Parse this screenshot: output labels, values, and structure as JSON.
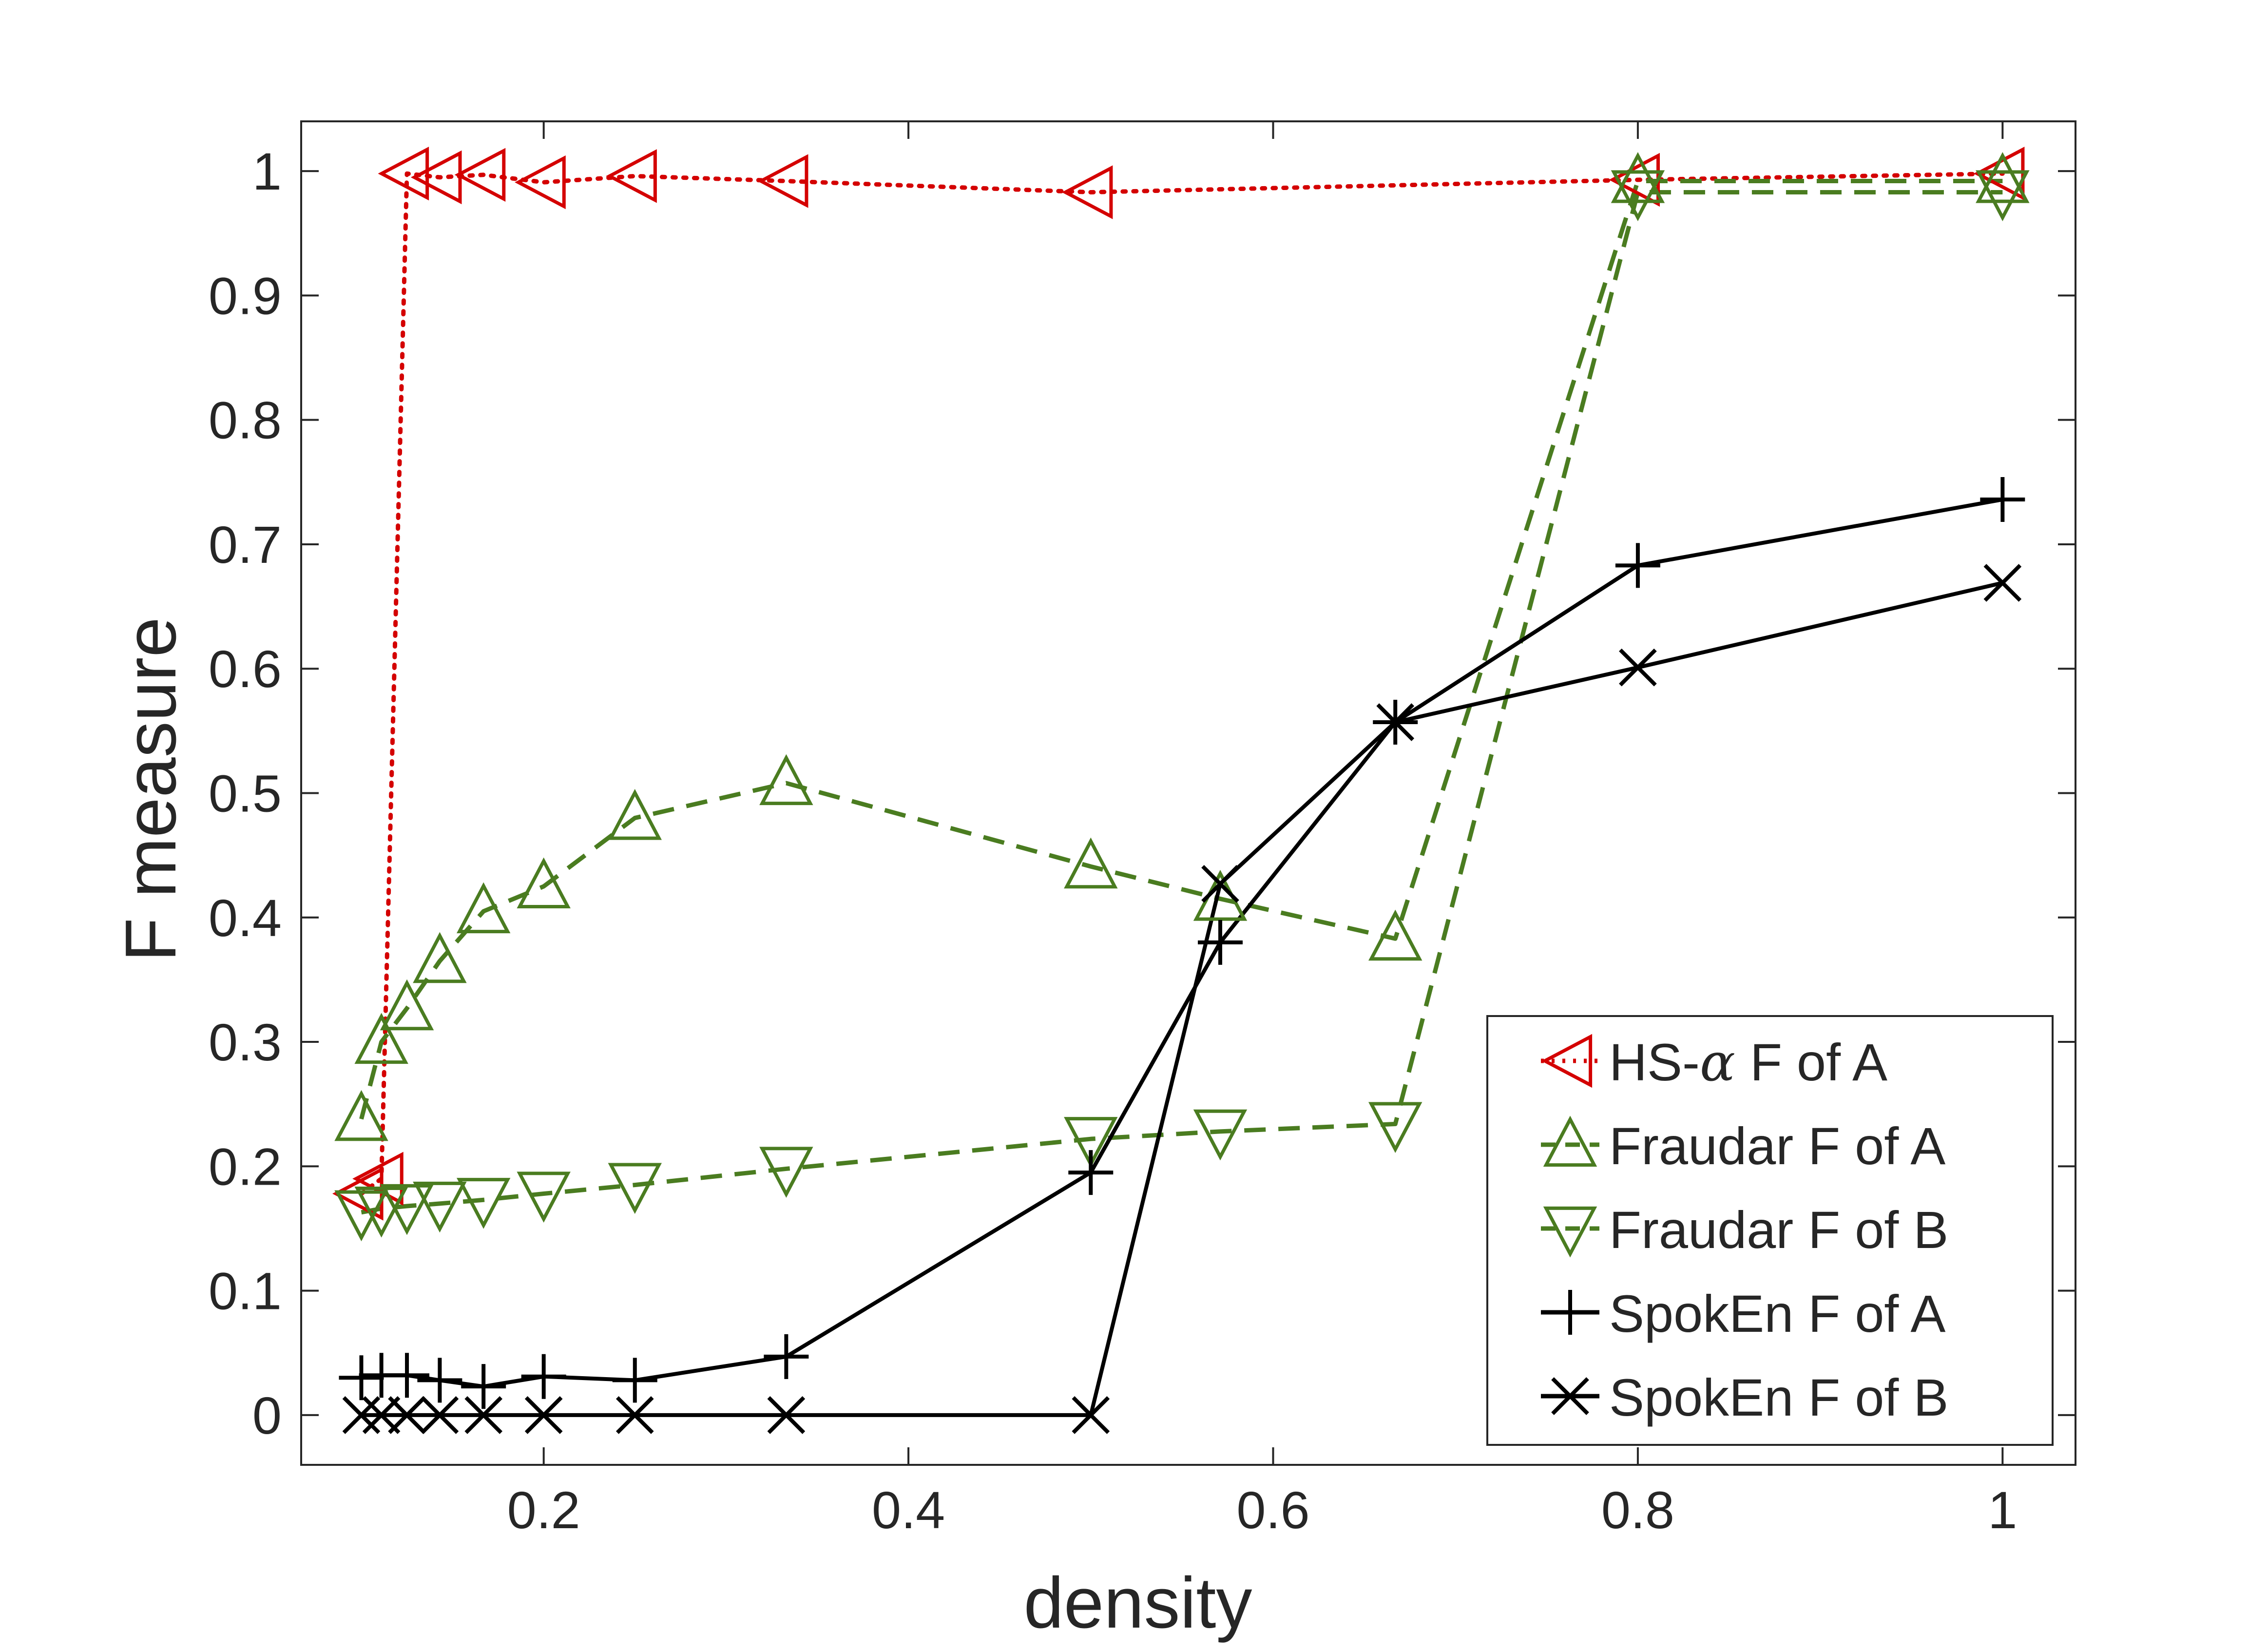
{
  "chart_data": {
    "type": "line",
    "title": "",
    "xlabel": "density",
    "ylabel": "F measure",
    "xlim": [
      0.067,
      1.04
    ],
    "ylim": [
      -0.04,
      1.04
    ],
    "xticks": [
      0.2,
      0.4,
      0.6,
      0.8,
      1
    ],
    "xtick_labels": [
      "0.2",
      "0.4",
      "0.6",
      "0.8",
      "1"
    ],
    "yticks": [
      0,
      0.1,
      0.2,
      0.3,
      0.4,
      0.5,
      0.6,
      0.7,
      0.8,
      0.9,
      1
    ],
    "ytick_labels": [
      "0",
      "0.1",
      "0.2",
      "0.3",
      "0.4",
      "0.5",
      "0.6",
      "0.7",
      "0.8",
      "0.9",
      "1"
    ],
    "grid": false,
    "legend_position": "bottom-right",
    "series": [
      {
        "name": "HS-α F of A",
        "legend_prefix": "HS-",
        "legend_symbol": "α",
        "legend_suffix": " F of A",
        "color": "#d40000",
        "line_style": "dotted",
        "marker": "triangle-left",
        "x": [
          0.1,
          0.111,
          0.125,
          0.143,
          0.167,
          0.2,
          0.25,
          0.333,
          0.5,
          0.8,
          1
        ],
        "y": [
          0.178,
          0.19,
          0.998,
          0.995,
          0.997,
          0.991,
          0.996,
          0.992,
          0.983,
          0.993,
          0.998
        ]
      },
      {
        "name": "Fraudar F of A",
        "color": "#4a7c20",
        "line_style": "dashed",
        "marker": "triangle-up",
        "x": [
          0.1,
          0.111,
          0.125,
          0.143,
          0.167,
          0.2,
          0.25,
          0.333,
          0.5,
          0.571,
          0.667,
          0.8,
          1
        ],
        "y": [
          0.238,
          0.3,
          0.327,
          0.365,
          0.405,
          0.425,
          0.48,
          0.508,
          0.441,
          0.415,
          0.383,
          0.992,
          0.992
        ]
      },
      {
        "name": "Fraudar F of B",
        "color": "#4a7c20",
        "line_style": "dashed",
        "marker": "triangle-down",
        "x": [
          0.1,
          0.111,
          0.125,
          0.143,
          0.167,
          0.2,
          0.25,
          0.333,
          0.5,
          0.571,
          0.667,
          0.8,
          1
        ],
        "y": [
          0.163,
          0.166,
          0.168,
          0.17,
          0.173,
          0.178,
          0.185,
          0.198,
          0.222,
          0.228,
          0.234,
          0.983,
          0.983
        ]
      },
      {
        "name": "SpokEn F of A",
        "color": "#000000",
        "line_style": "solid",
        "marker": "plus",
        "x": [
          0.1,
          0.111,
          0.125,
          0.143,
          0.167,
          0.2,
          0.25,
          0.333,
          0.5,
          0.571,
          0.667,
          0.8,
          1
        ],
        "y": [
          0.03,
          0.032,
          0.032,
          0.028,
          0.023,
          0.031,
          0.028,
          0.047,
          0.195,
          0.38,
          0.557,
          0.683,
          0.736
        ]
      },
      {
        "name": "SpokEn F of B",
        "color": "#000000",
        "line_style": "solid",
        "marker": "cross",
        "x": [
          0.1,
          0.111,
          0.125,
          0.143,
          0.167,
          0.2,
          0.25,
          0.333,
          0.5,
          0.571,
          0.667,
          0.8,
          1
        ],
        "y": [
          0,
          0,
          0,
          0,
          0,
          0,
          0,
          0,
          0,
          0.427,
          0.557,
          0.601,
          0.669
        ]
      }
    ]
  }
}
